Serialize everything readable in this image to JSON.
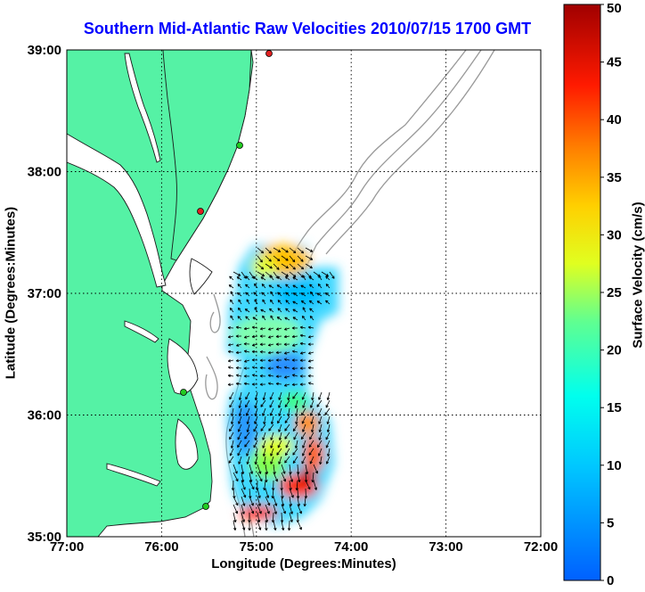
{
  "map": {
    "title": "Southern Mid-Atlantic Raw Velocities 2010/07/15 1700 GMT",
    "xlabel": "Longitude (Degrees:Minutes)",
    "ylabel": "Latitude (Degrees:Minutes)",
    "x_ticks": [
      "77:00",
      "76:00",
      "75:00",
      "74:00",
      "73:00",
      "72:00"
    ],
    "y_ticks": [
      "39:00",
      "38:00",
      "37:00",
      "36:00",
      "35:00"
    ],
    "lon_range": [
      -77,
      -72
    ],
    "lat_range": [
      35,
      39
    ],
    "colors": {
      "land": "#55f2a5",
      "coast": "#1a1a1a",
      "isobath": "#999999",
      "station": "#22cc22",
      "station_alt": "#e02020"
    }
  },
  "colorbar": {
    "label": "Surface Velocity (cm/s)",
    "ticks": [
      "50",
      "45",
      "40",
      "35",
      "30",
      "25",
      "20",
      "15",
      "10",
      "5",
      "0"
    ],
    "range": [
      0,
      50
    ]
  }
}
